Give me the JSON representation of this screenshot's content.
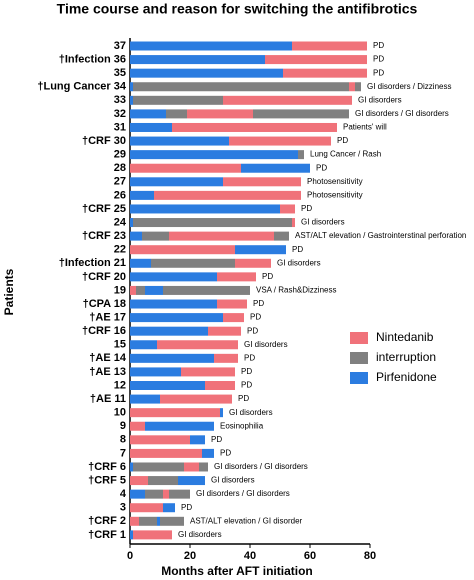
{
  "chart_data": {
    "type": "bar",
    "orientation": "horizontal",
    "title": "Time course and reason for switching the antifibrotics",
    "xlabel": "Months after AFT initiation",
    "ylabel": "Patients",
    "xlim": [
      0,
      80
    ],
    "xticks": [
      0,
      20,
      40,
      60,
      80
    ],
    "series": [
      {
        "name": "Nintedanib",
        "color": "#f0727a"
      },
      {
        "name": "interruption",
        "color": "#808080"
      },
      {
        "name": "Pirfenidone",
        "color": "#2b7ce0"
      }
    ],
    "rows": [
      {
        "label": "37",
        "annotation": "PD",
        "segments": [
          {
            "s": 2,
            "value": 54
          },
          {
            "s": 0,
            "value": 25
          }
        ]
      },
      {
        "label": "†Infection 36",
        "annotation": "PD",
        "segments": [
          {
            "s": 2,
            "value": 45
          },
          {
            "s": 0,
            "value": 34
          }
        ]
      },
      {
        "label": "35",
        "annotation": "PD",
        "segments": [
          {
            "s": 2,
            "value": 51
          },
          {
            "s": 0,
            "value": 28
          }
        ]
      },
      {
        "label": "†Lung Cancer 34",
        "annotation": "GI disorders / Dizziness",
        "segments": [
          {
            "s": 2,
            "value": 1
          },
          {
            "s": 1,
            "value": 72
          },
          {
            "s": 0,
            "value": 2
          },
          {
            "s": 1,
            "value": 2
          }
        ]
      },
      {
        "label": "33",
        "annotation": "GI disorders",
        "segments": [
          {
            "s": 2,
            "value": 1
          },
          {
            "s": 1,
            "value": 30
          },
          {
            "s": 0,
            "value": 43
          }
        ]
      },
      {
        "label": "32",
        "annotation": "GI disorders / GI disorders",
        "segments": [
          {
            "s": 2,
            "value": 12
          },
          {
            "s": 1,
            "value": 7
          },
          {
            "s": 0,
            "value": 22
          },
          {
            "s": 1,
            "value": 32
          }
        ]
      },
      {
        "label": "31",
        "annotation": "Patients' will",
        "segments": [
          {
            "s": 2,
            "value": 14
          },
          {
            "s": 0,
            "value": 55
          }
        ]
      },
      {
        "label": "†CRF 30",
        "annotation": "PD",
        "segments": [
          {
            "s": 2,
            "value": 33
          },
          {
            "s": 0,
            "value": 34
          }
        ]
      },
      {
        "label": "29",
        "annotation": "Lung Cancer / Rash",
        "segments": [
          {
            "s": 2,
            "value": 56
          },
          {
            "s": 1,
            "value": 2
          }
        ]
      },
      {
        "label": "28",
        "annotation": "PD",
        "segments": [
          {
            "s": 0,
            "value": 37
          },
          {
            "s": 2,
            "value": 23
          }
        ]
      },
      {
        "label": "27",
        "annotation": "Photosensitivity",
        "segments": [
          {
            "s": 2,
            "value": 31
          },
          {
            "s": 0,
            "value": 26
          }
        ]
      },
      {
        "label": "26",
        "annotation": "Photosensitivity",
        "segments": [
          {
            "s": 2,
            "value": 8
          },
          {
            "s": 0,
            "value": 49
          }
        ]
      },
      {
        "label": "†CRF 25",
        "annotation": "PD",
        "segments": [
          {
            "s": 2,
            "value": 50
          },
          {
            "s": 0,
            "value": 5
          }
        ]
      },
      {
        "label": "24",
        "annotation": "GI disorders",
        "segments": [
          {
            "s": 2,
            "value": 1
          },
          {
            "s": 1,
            "value": 53
          },
          {
            "s": 0,
            "value": 1
          }
        ]
      },
      {
        "label": "†CRF 23",
        "annotation": "AST/ALT elevation / Gastrointerstinal perforation",
        "segments": [
          {
            "s": 2,
            "value": 4
          },
          {
            "s": 1,
            "value": 9
          },
          {
            "s": 0,
            "value": 35
          },
          {
            "s": 1,
            "value": 5
          }
        ]
      },
      {
        "label": "22",
        "annotation": "PD",
        "segments": [
          {
            "s": 0,
            "value": 35
          },
          {
            "s": 2,
            "value": 17
          }
        ]
      },
      {
        "label": "†Infection 21",
        "annotation": "GI disorders",
        "segments": [
          {
            "s": 2,
            "value": 7
          },
          {
            "s": 1,
            "value": 28
          },
          {
            "s": 0,
            "value": 12
          }
        ]
      },
      {
        "label": "†CRF 20",
        "annotation": "PD",
        "segments": [
          {
            "s": 2,
            "value": 29
          },
          {
            "s": 0,
            "value": 13
          }
        ]
      },
      {
        "label": "19",
        "annotation": "VSA / Rash&Dizziness",
        "segments": [
          {
            "s": 0,
            "value": 2
          },
          {
            "s": 1,
            "value": 3
          },
          {
            "s": 2,
            "value": 6
          },
          {
            "s": 1,
            "value": 29
          }
        ]
      },
      {
        "label": "†CPA 18",
        "annotation": "PD",
        "segments": [
          {
            "s": 2,
            "value": 29
          },
          {
            "s": 0,
            "value": 10
          }
        ]
      },
      {
        "label": "†AE 17",
        "annotation": "PD",
        "segments": [
          {
            "s": 2,
            "value": 31
          },
          {
            "s": 0,
            "value": 7
          }
        ]
      },
      {
        "label": "†CRF 16",
        "annotation": "PD",
        "segments": [
          {
            "s": 2,
            "value": 26
          },
          {
            "s": 0,
            "value": 11
          }
        ]
      },
      {
        "label": "15",
        "annotation": "GI disorders",
        "segments": [
          {
            "s": 2,
            "value": 9
          },
          {
            "s": 0,
            "value": 27
          }
        ]
      },
      {
        "label": "†AE 14",
        "annotation": "PD",
        "segments": [
          {
            "s": 2,
            "value": 28
          },
          {
            "s": 0,
            "value": 8
          }
        ]
      },
      {
        "label": "†AE 13",
        "annotation": "PD",
        "segments": [
          {
            "s": 2,
            "value": 17
          },
          {
            "s": 0,
            "value": 18
          }
        ]
      },
      {
        "label": "12",
        "annotation": "PD",
        "segments": [
          {
            "s": 2,
            "value": 25
          },
          {
            "s": 0,
            "value": 10
          }
        ]
      },
      {
        "label": "†AE 11",
        "annotation": "PD",
        "segments": [
          {
            "s": 2,
            "value": 10
          },
          {
            "s": 0,
            "value": 24
          }
        ]
      },
      {
        "label": "10",
        "annotation": "GI disorders",
        "segments": [
          {
            "s": 0,
            "value": 30
          },
          {
            "s": 2,
            "value": 1
          }
        ]
      },
      {
        "label": "9",
        "annotation": "Eosinophilia",
        "segments": [
          {
            "s": 0,
            "value": 5
          },
          {
            "s": 2,
            "value": 23
          }
        ]
      },
      {
        "label": "8",
        "annotation": "PD",
        "segments": [
          {
            "s": 0,
            "value": 20
          },
          {
            "s": 2,
            "value": 5
          }
        ]
      },
      {
        "label": "7",
        "annotation": "PD",
        "segments": [
          {
            "s": 0,
            "value": 24
          },
          {
            "s": 2,
            "value": 4
          }
        ]
      },
      {
        "label": "†CRF 6",
        "annotation": "GI disorders / GI disorders",
        "segments": [
          {
            "s": 2,
            "value": 1
          },
          {
            "s": 1,
            "value": 17
          },
          {
            "s": 0,
            "value": 5
          },
          {
            "s": 1,
            "value": 3
          }
        ]
      },
      {
        "label": "†CRF 5",
        "annotation": "GI disorders",
        "segments": [
          {
            "s": 0,
            "value": 6
          },
          {
            "s": 1,
            "value": 10
          },
          {
            "s": 2,
            "value": 9
          }
        ]
      },
      {
        "label": "4",
        "annotation": "GI disorders / GI disorders",
        "segments": [
          {
            "s": 2,
            "value": 5
          },
          {
            "s": 1,
            "value": 6
          },
          {
            "s": 0,
            "value": 2
          },
          {
            "s": 1,
            "value": 7
          }
        ]
      },
      {
        "label": "3",
        "annotation": "PD",
        "segments": [
          {
            "s": 0,
            "value": 11
          },
          {
            "s": 2,
            "value": 4
          }
        ]
      },
      {
        "label": "†CRF 2",
        "annotation": "AST/ALT elevation / GI disorder",
        "segments": [
          {
            "s": 0,
            "value": 3
          },
          {
            "s": 1,
            "value": 6
          },
          {
            "s": 2,
            "value": 1
          },
          {
            "s": 1,
            "value": 8
          }
        ]
      },
      {
        "label": "†CRF 1",
        "annotation": "GI disorders",
        "segments": [
          {
            "s": 2,
            "value": 1
          },
          {
            "s": 0,
            "value": 13
          }
        ]
      }
    ]
  }
}
